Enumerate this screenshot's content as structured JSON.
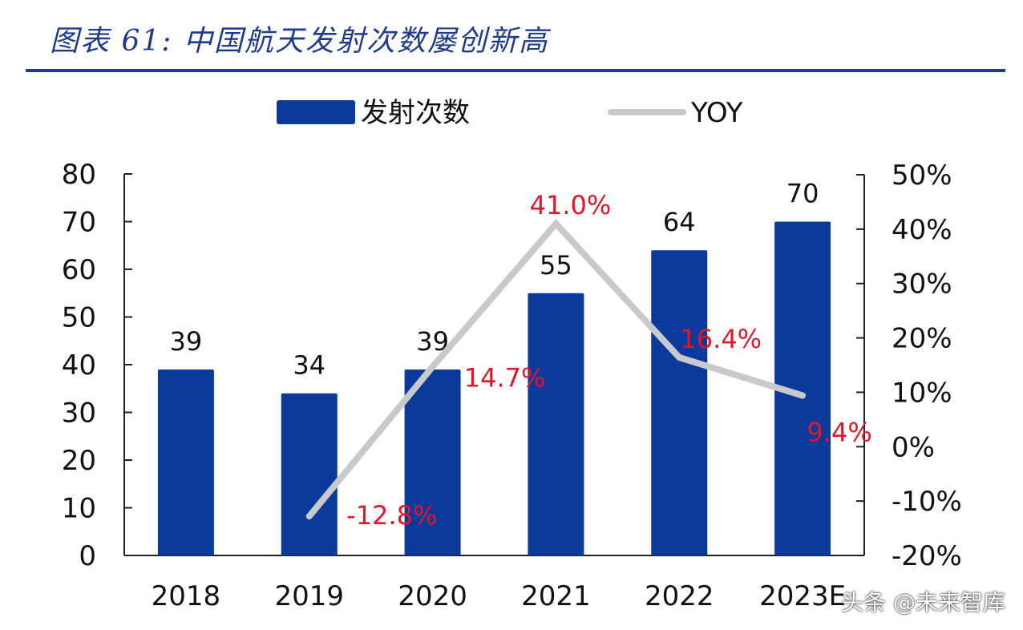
{
  "figure": {
    "title": "图表 61:  中国航天发射次数屡创新高",
    "watermark": "头条 @未来智库"
  },
  "colors": {
    "title": "#1f3b8a",
    "bar": "#0b3a9a",
    "line": "#c8c9cc",
    "yoy_label": "#e3152b"
  },
  "chart_data": {
    "type": "bar",
    "categories": [
      "2018",
      "2019",
      "2020",
      "2021",
      "2022",
      "2023E"
    ],
    "series": [
      {
        "name": "发射次数",
        "type": "bar",
        "axis": "left",
        "values": [
          39,
          34,
          39,
          55,
          64,
          70
        ],
        "labels": [
          "39",
          "34",
          "39",
          "55",
          "64",
          "70"
        ]
      },
      {
        "name": "YOY",
        "type": "line",
        "axis": "right",
        "values": [
          null,
          -12.8,
          14.7,
          41.0,
          16.4,
          9.4
        ],
        "labels": [
          "",
          "-12.8%",
          "14.7%",
          "41.0%",
          "16.4%",
          "9.4%"
        ]
      }
    ],
    "y_left": {
      "min": 0,
      "max": 80,
      "ticks": [
        "0",
        "10",
        "20",
        "30",
        "40",
        "50",
        "60",
        "70",
        "80"
      ]
    },
    "y_right": {
      "min": -20,
      "max": 50,
      "ticks": [
        "-20%",
        "-10%",
        "0%",
        "10%",
        "20%",
        "30%",
        "40%",
        "50%"
      ]
    },
    "legend_position": "top-center",
    "grid": false
  }
}
